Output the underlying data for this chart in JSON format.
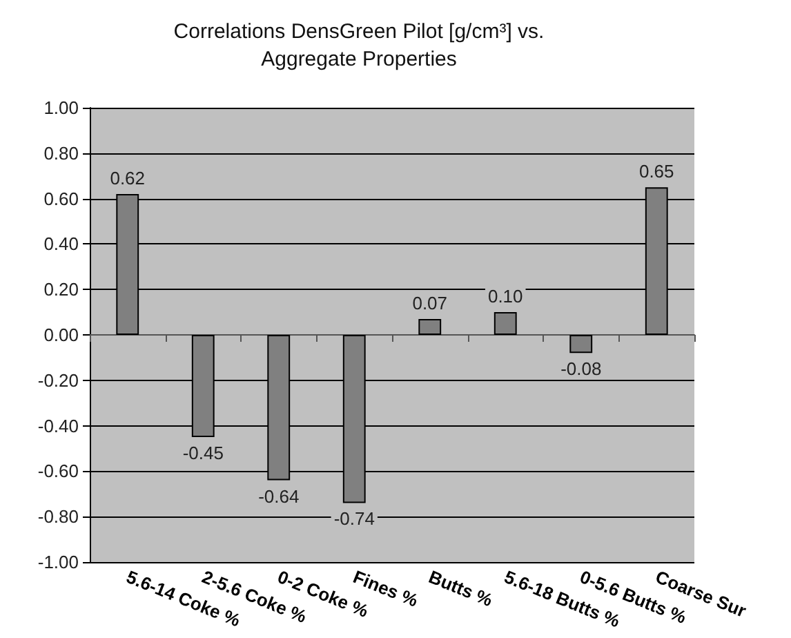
{
  "chart_data": {
    "type": "bar",
    "title": "Correlations DensGreen Pilot [g/cm³] vs.\nAggregate Properties",
    "categories": [
      "5.6-14 Coke %",
      "2-5.6 Coke %",
      "0-2 Coke %",
      "Fines %",
      "Butts %",
      "5.6-18 Butts %",
      "0-5.6 Butts %",
      "Coarse Sur"
    ],
    "values": [
      0.62,
      -0.45,
      -0.64,
      -0.74,
      0.07,
      0.1,
      -0.08,
      0.65
    ],
    "value_labels": [
      "0.62",
      "-0.45",
      "-0.64",
      "-0.74",
      "0.07",
      "0.10",
      "-0.08",
      "0.65"
    ],
    "color": "#808080",
    "ylim": [
      -1,
      1
    ],
    "yticks": [
      {
        "value": -1,
        "label": "-1.00"
      },
      {
        "value": -0.8,
        "label": "-0.80"
      },
      {
        "value": -0.6,
        "label": "-0.60"
      },
      {
        "value": -0.4,
        "label": "-0.40"
      },
      {
        "value": -0.2,
        "label": "-0.20"
      },
      {
        "value": 0,
        "label": "0.00"
      },
      {
        "value": 0.2,
        "label": "0.20"
      },
      {
        "value": 0.4,
        "label": "0.40"
      },
      {
        "value": 0.6,
        "label": "0.60"
      },
      {
        "value": 0.8,
        "label": "0.80"
      },
      {
        "value": 1,
        "label": "1.00"
      }
    ],
    "grid": "y"
  }
}
